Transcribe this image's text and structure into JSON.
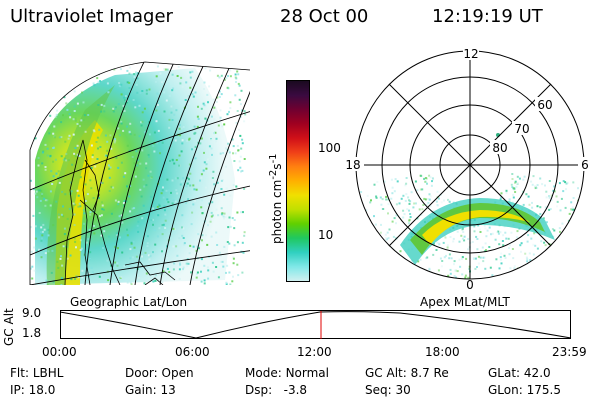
{
  "header": {
    "instrument": "Ultraviolet Imager",
    "date": "28 Oct 00",
    "time": "12:19:19 UT"
  },
  "colorbar": {
    "unit_label": "photon cm",
    "unit_sup1": "-2",
    "unit_mid": "s",
    "unit_sup2": "-1",
    "ticks": [
      "100",
      "10"
    ],
    "colors": [
      "#1a0a20",
      "#3a0a40",
      "#700030",
      "#a00020",
      "#d01018",
      "#f04018",
      "#ff8010",
      "#ffb000",
      "#f0e000",
      "#c0e000",
      "#60d000",
      "#20c860",
      "#30d0c0",
      "#80e8e8",
      "#d0f0f0"
    ]
  },
  "geo_panel": {
    "caption": "Geographic Lat/Lon"
  },
  "polar_panel": {
    "caption": "Apex MLat/MLT",
    "mlt_labels": [
      "12",
      "18",
      "6",
      "0"
    ],
    "mlat_labels": [
      "60",
      "70",
      "80"
    ]
  },
  "altitude_plot": {
    "ylabel_line1": "GC",
    "ylabel_line2": "Alt",
    "yticks": [
      "9.0",
      "1.8"
    ],
    "xticks": [
      "00:00",
      "06:00",
      "12:00",
      "18:00",
      "23:59"
    ],
    "marker_color": "#e00000"
  },
  "footer": {
    "filter": {
      "key": "Flt:",
      "value": "LBHL"
    },
    "door": {
      "key": "Door:",
      "value": "Open"
    },
    "mode": {
      "key": "Mode:",
      "value": "Normal"
    },
    "gc_alt": {
      "key": "GC Alt:",
      "value": "8.7 Re"
    },
    "glat": {
      "key": "GLat:",
      "value": "42.0"
    },
    "ip": {
      "key": "IP:",
      "value": "18.0"
    },
    "gain": {
      "key": "Gain:",
      "value": "13"
    },
    "dsp": {
      "key": "Dsp:",
      "value": "-3.8"
    },
    "seq": {
      "key": "Seq:",
      "value": "30"
    },
    "glon": {
      "key": "GLon:",
      "value": "175.5"
    }
  }
}
